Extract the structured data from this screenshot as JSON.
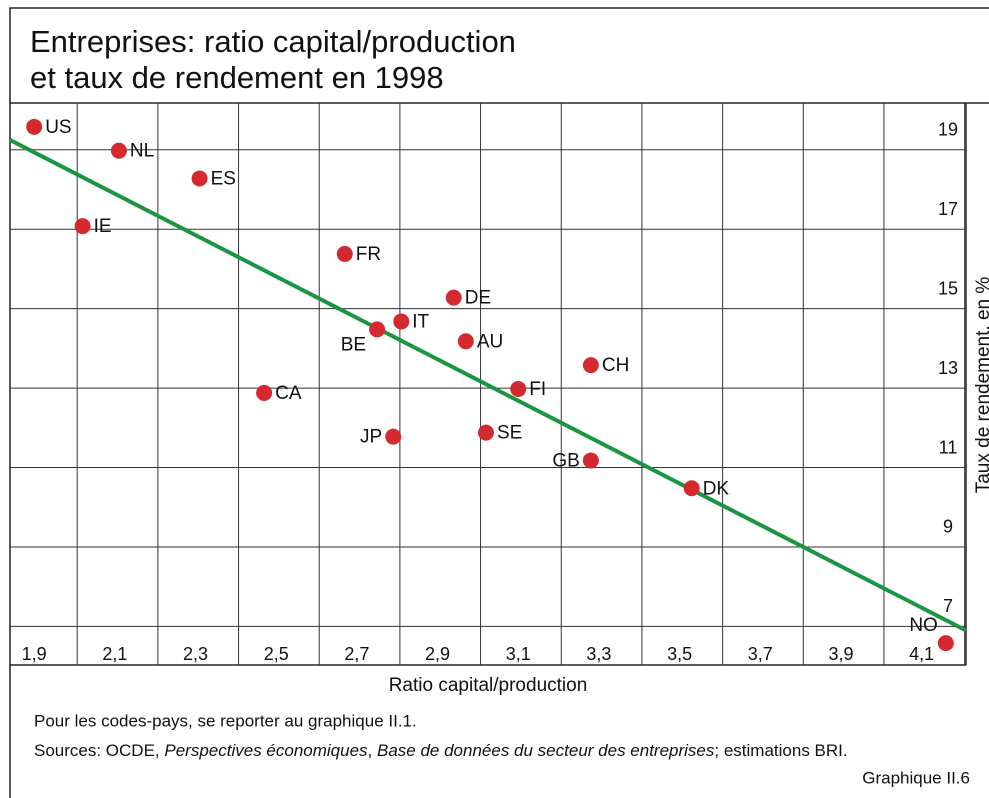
{
  "chart_data": {
    "type": "scatter",
    "title": [
      "Entreprises: ratio capital/production",
      "et taux de rendement en 1998"
    ],
    "x_label": "Ratio capital/production",
    "y_label": "Taux de rendement, en %",
    "categories": [
      "US",
      "NL",
      "ES",
      "IE",
      "FR",
      "DE",
      "IT",
      "BE",
      "AU",
      "CH",
      "CA",
      "FI",
      "JP",
      "SE",
      "GB",
      "DK",
      "NO"
    ],
    "x": [
      1.9,
      2.11,
      2.31,
      2.02,
      2.67,
      2.94,
      2.81,
      2.75,
      2.97,
      3.28,
      2.47,
      3.1,
      2.79,
      3.02,
      3.28,
      3.53,
      4.16
    ],
    "values": [
      19.1,
      18.5,
      17.8,
      16.6,
      15.9,
      14.8,
      14.2,
      14.0,
      13.7,
      13.1,
      12.4,
      12.5,
      11.3,
      11.4,
      10.7,
      10.0,
      6.1
    ],
    "color": "#d42a2f",
    "trendline": {
      "x": [
        1.84,
        4.21
      ],
      "y": [
        18.77,
        6.42
      ],
      "color": "#1a9641"
    },
    "xlim": [
      1.84,
      4.21
    ],
    "xticks": [
      {
        "value": 1.9,
        "label": "1,9"
      },
      {
        "value": 2.1,
        "label": "2,1"
      },
      {
        "value": 2.3,
        "label": "2,3"
      },
      {
        "value": 2.5,
        "label": "2,5"
      },
      {
        "value": 2.7,
        "label": "2,7"
      },
      {
        "value": 2.9,
        "label": "2,9"
      },
      {
        "value": 3.1,
        "label": "3,1"
      },
      {
        "value": 3.3,
        "label": "3,3"
      },
      {
        "value": 3.5,
        "label": "3,5"
      },
      {
        "value": 3.7,
        "label": "3,7"
      },
      {
        "value": 3.9,
        "label": "3,9"
      },
      {
        "value": 4.1,
        "label": "4,1"
      }
    ],
    "ylim": [
      5.55,
      19.7
    ],
    "yticks": [
      7,
      9,
      11,
      13,
      15,
      17,
      19
    ],
    "grid": true,
    "note": "Pour les codes-pays, se reporter au graphique II.1.",
    "sources": [
      {
        "text": "Sources: OCDE, ",
        "italic": false
      },
      {
        "text": "Perspectives économiques",
        "italic": true
      },
      {
        "text": ", ",
        "italic": false
      },
      {
        "text": "Base de données du secteur des entreprises",
        "italic": true
      },
      {
        "text": "; estimations BRI.",
        "italic": false
      }
    ],
    "figure_label": "Graphique II.6"
  }
}
